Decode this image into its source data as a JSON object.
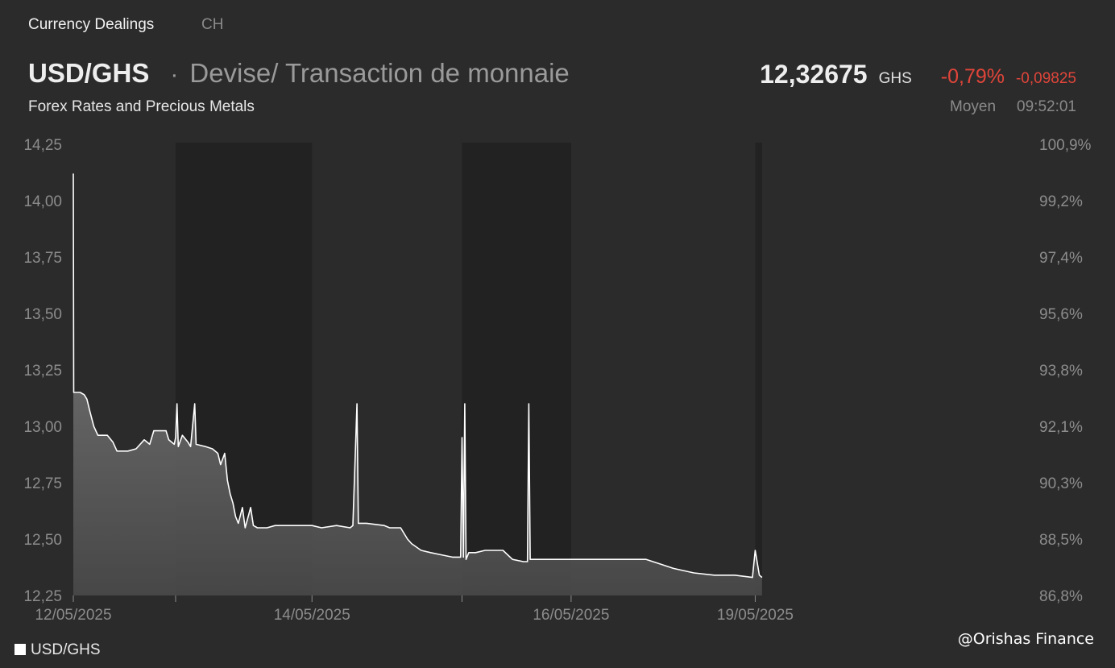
{
  "tabs": {
    "active": "Currency Dealings",
    "inactive": "CH"
  },
  "header": {
    "pair": "USD/GHS",
    "separator": "·",
    "description": "Devise/ Transaction de monnaie",
    "subtitle": "Forex Rates and Precious Metals",
    "price": "12,32675",
    "currency": "GHS",
    "change_pct": "-0,79%",
    "change_abs": "-0,09825",
    "price_type": "Moyen",
    "time": "09:52:01"
  },
  "colors": {
    "background": "#2b2b2b",
    "line": "#ffffff",
    "negative": "#e0453a",
    "shaded_band": "#222222"
  },
  "legend": {
    "label": "USD/GHS"
  },
  "watermark": "@Orishas Finance",
  "chart_data": {
    "type": "area",
    "series_name": "USD/GHS",
    "ylim": [
      12.25,
      14.25
    ],
    "y_ticks": [
      "14,25",
      "14,00",
      "13,75",
      "13,50",
      "13,25",
      "13,00",
      "12,75",
      "12,50",
      "12,25"
    ],
    "y2_ticks": [
      "100,9%",
      "99,2%",
      "97,4%",
      "95,6%",
      "93,8%",
      "92,1%",
      "90,3%",
      "88,5%",
      "86,8%"
    ],
    "x_ticks": [
      "12/05/2025",
      "14/05/2025",
      "16/05/2025",
      "19/05/2025"
    ],
    "x_range": [
      0,
      7
    ],
    "shaded_periods": [
      [
        0.75,
        1.75
      ],
      [
        2.85,
        3.65
      ],
      [
        5.0,
        5.05
      ]
    ],
    "grid": false,
    "legend_position": "bottom-left",
    "points": [
      [
        0.0,
        14.12
      ],
      [
        0.003,
        13.15
      ],
      [
        0.05,
        13.15
      ],
      [
        0.08,
        13.14
      ],
      [
        0.1,
        13.12
      ],
      [
        0.12,
        13.07
      ],
      [
        0.15,
        13.0
      ],
      [
        0.18,
        12.96
      ],
      [
        0.25,
        12.96
      ],
      [
        0.29,
        12.93
      ],
      [
        0.32,
        12.89
      ],
      [
        0.4,
        12.89
      ],
      [
        0.46,
        12.9
      ],
      [
        0.52,
        12.94
      ],
      [
        0.56,
        12.92
      ],
      [
        0.59,
        12.98
      ],
      [
        0.68,
        12.98
      ],
      [
        0.7,
        12.94
      ],
      [
        0.74,
        12.92
      ],
      [
        0.75,
        12.95
      ],
      [
        0.76,
        13.1
      ],
      [
        0.77,
        12.91
      ],
      [
        0.8,
        12.96
      ],
      [
        0.84,
        12.93
      ],
      [
        0.86,
        12.91
      ],
      [
        0.89,
        13.1
      ],
      [
        0.9,
        12.92
      ],
      [
        0.97,
        12.91
      ],
      [
        1.02,
        12.9
      ],
      [
        1.06,
        12.88
      ],
      [
        1.08,
        12.83
      ],
      [
        1.11,
        12.88
      ],
      [
        1.13,
        12.76
      ],
      [
        1.15,
        12.7
      ],
      [
        1.17,
        12.66
      ],
      [
        1.19,
        12.6
      ],
      [
        1.21,
        12.57
      ],
      [
        1.24,
        12.64
      ],
      [
        1.26,
        12.55
      ],
      [
        1.3,
        12.64
      ],
      [
        1.32,
        12.56
      ],
      [
        1.35,
        12.55
      ],
      [
        1.42,
        12.55
      ],
      [
        1.48,
        12.56
      ],
      [
        1.55,
        12.56
      ],
      [
        1.75,
        12.56
      ],
      [
        1.82,
        12.55
      ],
      [
        1.93,
        12.56
      ],
      [
        2.03,
        12.55
      ],
      [
        2.05,
        12.56
      ],
      [
        2.08,
        13.1
      ],
      [
        2.09,
        12.57
      ],
      [
        2.15,
        12.57
      ],
      [
        2.28,
        12.56
      ],
      [
        2.32,
        12.55
      ],
      [
        2.4,
        12.55
      ],
      [
        2.45,
        12.5
      ],
      [
        2.48,
        12.48
      ],
      [
        2.55,
        12.45
      ],
      [
        2.62,
        12.44
      ],
      [
        2.7,
        12.43
      ],
      [
        2.78,
        12.42
      ],
      [
        2.84,
        12.42
      ],
      [
        2.85,
        12.95
      ],
      [
        2.86,
        12.42
      ],
      [
        2.87,
        13.1
      ],
      [
        2.88,
        12.41
      ],
      [
        2.9,
        12.44
      ],
      [
        2.95,
        12.44
      ],
      [
        3.02,
        12.45
      ],
      [
        3.15,
        12.45
      ],
      [
        3.22,
        12.41
      ],
      [
        3.3,
        12.4
      ],
      [
        3.33,
        12.4
      ],
      [
        3.34,
        13.1
      ],
      [
        3.35,
        12.41
      ],
      [
        3.45,
        12.41
      ],
      [
        3.65,
        12.41
      ],
      [
        3.8,
        12.41
      ],
      [
        4.05,
        12.41
      ],
      [
        4.2,
        12.41
      ],
      [
        4.3,
        12.39
      ],
      [
        4.4,
        12.37
      ],
      [
        4.55,
        12.35
      ],
      [
        4.7,
        12.34
      ],
      [
        4.85,
        12.34
      ],
      [
        4.98,
        12.33
      ],
      [
        5.0,
        12.45
      ],
      [
        5.03,
        12.34
      ],
      [
        5.05,
        12.33
      ]
    ]
  }
}
